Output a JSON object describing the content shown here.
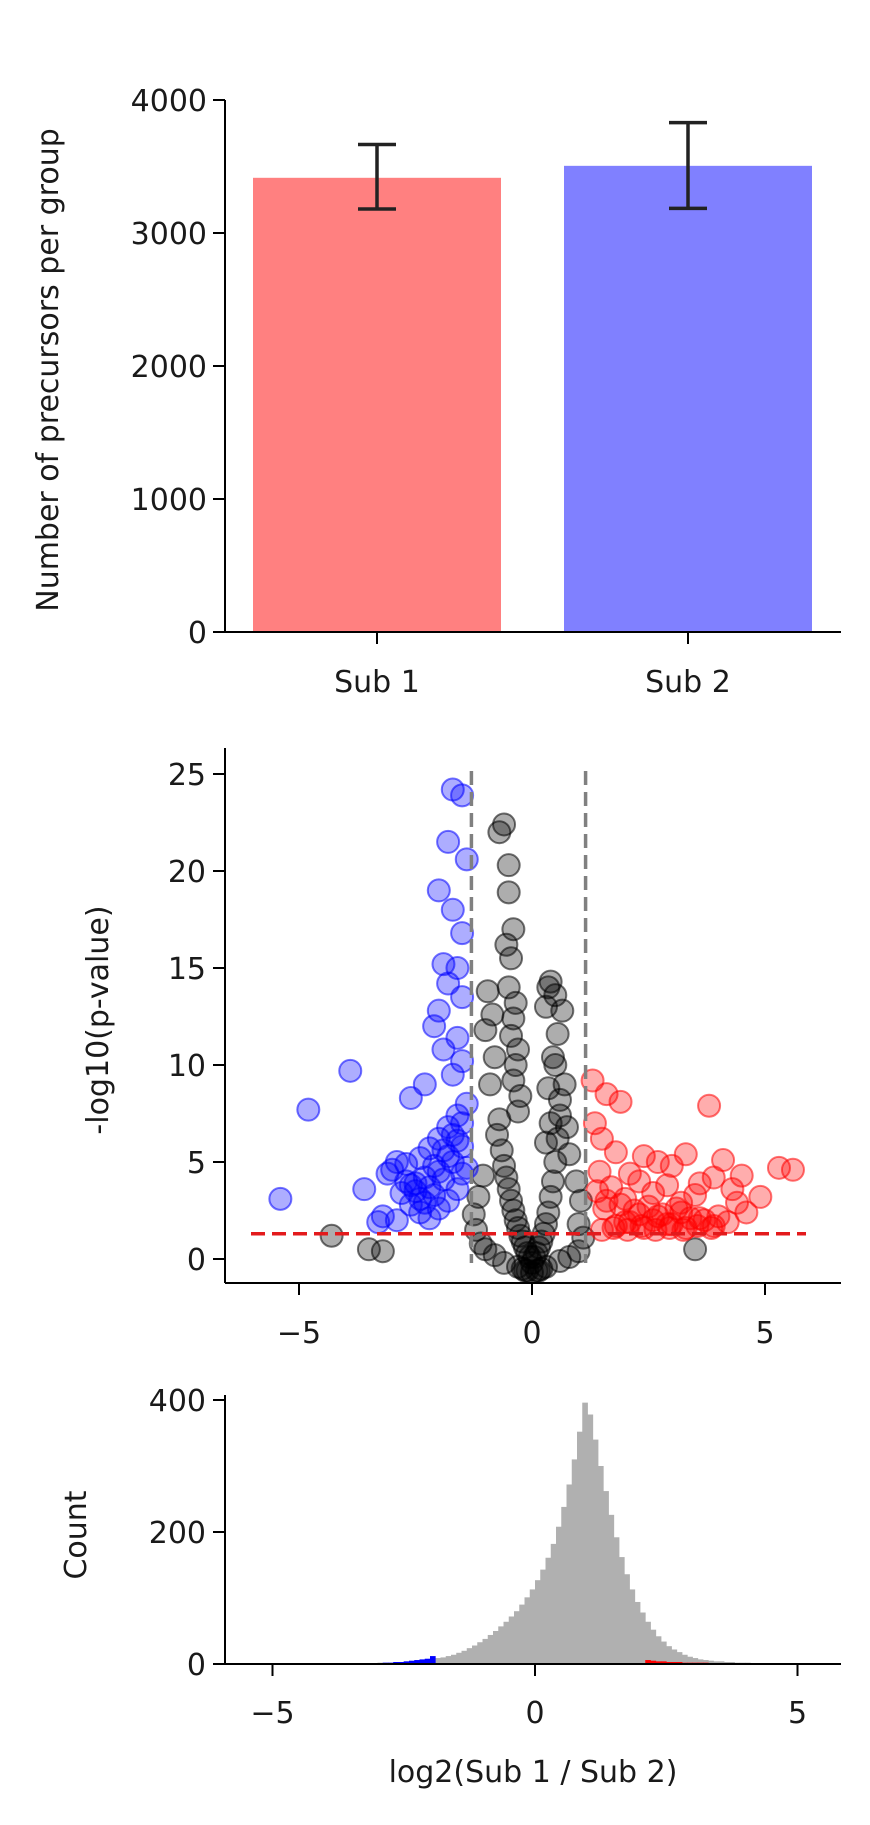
{
  "chart_data": [
    {
      "type": "bar",
      "ylabel": "Number of precursors per group",
      "categories": [
        "Sub 1",
        "Sub 2"
      ],
      "values": [
        3415,
        3505
      ],
      "error": [
        [
          3180,
          3665
        ],
        [
          3185,
          3830
        ]
      ],
      "colors": [
        "#ff8080",
        "#8080ff"
      ],
      "ylim": [
        0,
        4000
      ],
      "yticks": [
        "0",
        "1000",
        "2000",
        "3000",
        "4000"
      ],
      "grid": false
    },
    {
      "type": "scatter",
      "ylabel": "-log10(p-value)",
      "xlim": [
        -6.5,
        6.5
      ],
      "ylim": [
        -1.2,
        26.5
      ],
      "xticks": [
        "−5",
        "0",
        "5"
      ],
      "yticks": [
        "0",
        "5",
        "10",
        "15",
        "20",
        "25"
      ],
      "thresholds": {
        "fold_change": [
          -1.3,
          1.15
        ],
        "p_value_line": 1.3
      },
      "colors": {
        "down": "#0000ff",
        "up": "#ff0000",
        "ns": "#000000",
        "guide": "#808080",
        "pline": "#e31a1c"
      },
      "series": [
        {
          "group": "down",
          "x": [
            -1.7,
            -1.5,
            -1.8,
            -1.4,
            -2.0,
            -1.7,
            -1.5,
            -1.9,
            -1.6,
            -1.8,
            -1.5,
            -2.0,
            -2.1,
            -1.6,
            -1.9,
            -1.5,
            -1.7,
            -2.3,
            -2.6,
            -3.9,
            -4.8,
            -5.4,
            -3.6,
            -2.9,
            -3.1,
            -2.7,
            -2.4,
            -2.2,
            -2.0,
            -1.8,
            -1.6,
            -1.4,
            -2.5,
            -2.8,
            -3.2,
            -2.3,
            -2.1,
            -1.9,
            -1.7,
            -2.6,
            -2.4,
            -2.2,
            -2.0,
            -1.8,
            -1.6,
            -1.5,
            -3.0,
            -2.7,
            -2.5,
            -2.3,
            -2.1,
            -1.9,
            -1.7,
            -1.5,
            -1.4,
            -3.3,
            -2.9,
            -2.6,
            -2.4,
            -2.2,
            -2.0,
            -1.8,
            -1.6,
            -1.5
          ],
          "y": [
            24.2,
            23.9,
            21.5,
            20.6,
            19.0,
            18.0,
            16.8,
            15.2,
            15.0,
            14.2,
            13.5,
            12.8,
            12.0,
            11.4,
            10.8,
            10.2,
            9.5,
            9.0,
            8.3,
            9.7,
            7.7,
            3.1,
            3.6,
            5.0,
            4.4,
            4.9,
            5.2,
            5.7,
            6.2,
            6.8,
            7.4,
            8.0,
            3.9,
            3.4,
            2.2,
            2.9,
            3.3,
            4.1,
            5.0,
            2.8,
            2.4,
            2.1,
            2.6,
            3.0,
            3.6,
            4.4,
            4.6,
            4.0,
            3.5,
            4.2,
            4.8,
            5.6,
            6.4,
            5.8,
            4.7,
            1.9,
            2.0,
            3.8,
            3.1,
            3.7,
            4.5,
            5.3,
            6.1,
            7.0
          ]
        },
        {
          "group": "up",
          "x": [
            1.3,
            1.6,
            1.9,
            3.8,
            5.3,
            4.1,
            4.5,
            3.3,
            3.0,
            2.7,
            2.4,
            2.1,
            1.8,
            1.5,
            1.35,
            3.6,
            3.9,
            4.3,
            4.6,
            4.9,
            5.6,
            2.9,
            2.6,
            2.3,
            2.0,
            1.7,
            1.45,
            3.2,
            3.5,
            2.5,
            2.8,
            3.1,
            3.4,
            2.2,
            1.9,
            1.6,
            1.4,
            4.0,
            3.7,
            4.4,
            2.0,
            2.3,
            2.6,
            2.9,
            3.2,
            1.55,
            1.8,
            2.1,
            2.4,
            2.7,
            3.0,
            3.3,
            3.6,
            3.9,
            4.2,
            1.5,
            1.75,
            2.05,
            2.35,
            2.65,
            2.95,
            3.25,
            3.55,
            3.85
          ],
          "y": [
            9.2,
            8.5,
            8.1,
            7.9,
            4.7,
            5.1,
            4.3,
            5.4,
            4.8,
            5.0,
            5.3,
            4.4,
            5.5,
            6.2,
            7.0,
            3.9,
            4.2,
            3.6,
            2.4,
            3.2,
            4.6,
            3.8,
            3.4,
            4.0,
            3.1,
            3.7,
            4.5,
            2.9,
            3.3,
            2.7,
            2.3,
            2.6,
            2.1,
            2.5,
            2.8,
            3.0,
            3.5,
            2.2,
            2.0,
            2.9,
            1.9,
            2.3,
            2.0,
            1.8,
            2.4,
            2.6,
            1.7,
            1.9,
            1.6,
            2.2,
            1.8,
            1.6,
            2.1,
            1.7,
            1.9,
            1.5,
            1.6,
            1.5,
            1.7,
            1.5,
            1.6,
            1.5,
            1.7,
            1.6
          ],
          "note_marker": "circle"
        },
        {
          "group": "ns",
          "x": [
            -0.6,
            -0.7,
            -0.5,
            -0.5,
            -0.4,
            -0.55,
            -0.45,
            -0.5,
            -0.35,
            -0.4,
            -0.45,
            -0.3,
            -0.35,
            -0.4,
            -0.25,
            -0.3,
            -0.9,
            -0.8,
            -1.0,
            -0.85,
            -0.95,
            -0.7,
            -0.75,
            -0.65,
            -0.6,
            -0.55,
            -0.5,
            -0.45,
            -0.4,
            -0.35,
            -0.3,
            -0.25,
            -0.2,
            -0.15,
            -0.1,
            -0.05,
            0.0,
            0.05,
            0.1,
            0.15,
            0.2,
            0.25,
            0.3,
            0.35,
            0.4,
            0.45,
            0.5,
            0.55,
            0.6,
            0.7,
            0.45,
            0.55,
            0.65,
            0.5,
            0.4,
            0.35,
            0.3,
            0.6,
            0.75,
            0.8,
            0.95,
            1.05,
            0.35,
            0.5,
            0.3,
            0.4,
            -4.3,
            -3.5,
            -3.2,
            3.5,
            -1.2,
            -1.1,
            -1.25,
            -1.15,
            -1.05,
            1.0,
            1.1,
            -0.2,
            0.2,
            -0.1,
            0.1,
            0.0,
            -0.3,
            0.3,
            -0.6,
            0.6,
            -0.8,
            0.8,
            -1.0,
            1.0,
            -0.15,
            0.15
          ],
          "y": [
            22.4,
            22.0,
            20.3,
            18.9,
            17.0,
            16.2,
            15.5,
            14.0,
            13.2,
            12.4,
            11.5,
            10.8,
            10.0,
            9.2,
            8.4,
            7.6,
            9.0,
            10.4,
            11.8,
            12.6,
            13.8,
            7.2,
            6.4,
            5.6,
            4.8,
            4.2,
            3.6,
            3.0,
            2.5,
            2.0,
            1.6,
            1.2,
            0.9,
            0.6,
            0.3,
            0.1,
            -0.2,
            0.1,
            0.3,
            0.6,
            0.9,
            1.3,
            1.8,
            2.4,
            3.2,
            4.0,
            5.0,
            6.2,
            7.4,
            9.0,
            10.4,
            11.6,
            12.8,
            13.6,
            14.3,
            14.0,
            13.0,
            8.2,
            6.8,
            5.4,
            4.0,
            3.0,
            8.8,
            10.0,
            6.0,
            7.0,
            1.2,
            0.5,
            0.4,
            0.5,
            1.5,
            0.8,
            2.3,
            3.2,
            4.3,
            1.8,
            1.1,
            -0.5,
            -0.5,
            -0.6,
            -0.6,
            -0.7,
            -0.4,
            -0.4,
            -0.2,
            -0.1,
            0.2,
            0.1,
            0.5,
            0.4,
            -0.6,
            -0.6
          ]
        }
      ]
    },
    {
      "type": "histogram",
      "ylabel": "Count",
      "xlabel": "log2(Sub 1 / Sub 2)",
      "xlim": [
        -6.0,
        5.8
      ],
      "ylim": [
        0,
        418
      ],
      "xticks": [
        "−5",
        "0",
        "5"
      ],
      "yticks": [
        "0",
        "200",
        "400"
      ],
      "bin_width": 0.1,
      "colors": {
        "main": "#b0b0b0",
        "down": "#0000ff",
        "up": "#ff0000"
      },
      "bins": {
        "start": -3.2,
        "counts": [
          1,
          1,
          2,
          2,
          2,
          3,
          3,
          4,
          4,
          5,
          6,
          7,
          8,
          9,
          10,
          12,
          14,
          17,
          20,
          24,
          28,
          33,
          38,
          44,
          50,
          57,
          64,
          72,
          80,
          90,
          101,
          113,
          127,
          143,
          161,
          182,
          208,
          238,
          272,
          310,
          352,
          396,
          378,
          340,
          300,
          262,
          226,
          192,
          162,
          136,
          113,
          94,
          78,
          64,
          52,
          42,
          34,
          27,
          22,
          18,
          14,
          11,
          9,
          7,
          6,
          5,
          4,
          4,
          3,
          3,
          2,
          2,
          2,
          1,
          1
        ],
        "down_range": [
          -3.0,
          -1.9
        ],
        "up_range": [
          2.1,
          4.2
        ],
        "down_counts": [
          1,
          2,
          2,
          3,
          3,
          4,
          5,
          6,
          7,
          8,
          12
        ],
        "up_counts": [
          6,
          5,
          4,
          4,
          3,
          3,
          3,
          2,
          2,
          2,
          2,
          2,
          1,
          1,
          1,
          1,
          1,
          1,
          1,
          1,
          1
        ]
      }
    }
  ]
}
